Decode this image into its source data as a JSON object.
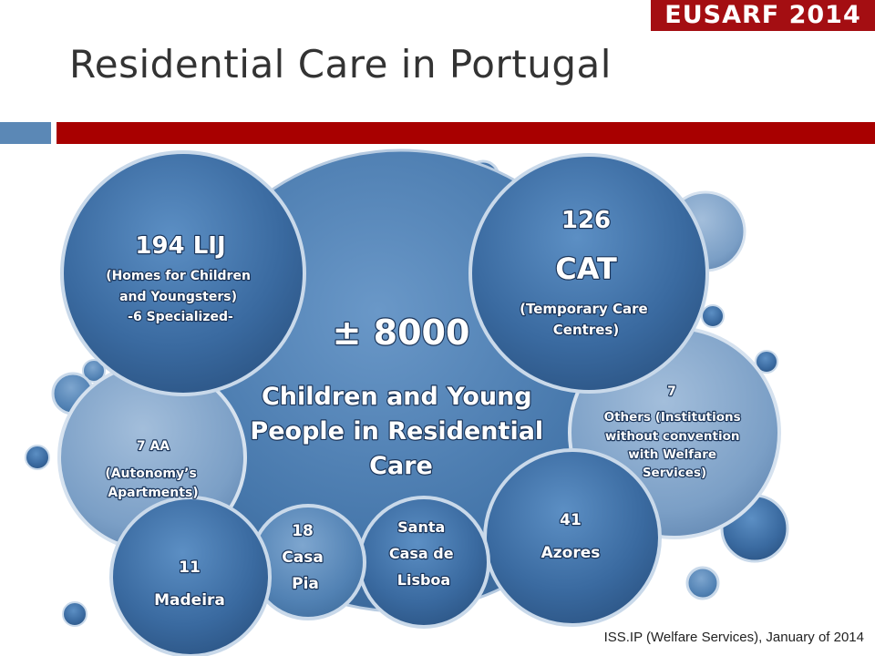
{
  "header": {
    "logo_text": "EUSARF 2014",
    "title": "Residential Care in Portugal",
    "accent_colors": {
      "blue": "#5b88b6",
      "red": "#a80000"
    }
  },
  "diagram": {
    "center": {
      "value": "±  8000",
      "description": [
        "Children and Young",
        "People in Residential",
        "Care"
      ]
    },
    "lij": {
      "count": "194 LIJ",
      "lines": [
        "(Homes for Children",
        "and Youngsters)",
        "-6 Specialized-"
      ]
    },
    "cat": {
      "count": "126",
      "code": "CAT",
      "lines": [
        "(Temporary Care",
        "Centres)"
      ]
    },
    "others": {
      "count": "7",
      "lines": [
        "Others (Institutions",
        "without convention",
        "with Welfare",
        "Services)"
      ]
    },
    "aa": {
      "count": "7 AA",
      "lines": [
        "(Autonomy’s",
        "Apartments)"
      ]
    },
    "madeira": {
      "count": "11",
      "name": "Madeira"
    },
    "casa_pia": {
      "lines": [
        "18",
        "Casa",
        "Pia"
      ]
    },
    "santa_casa": {
      "lines": [
        "Santa",
        "Casa de",
        "Lisboa"
      ]
    },
    "azores": {
      "count": "41",
      "name": "Azores"
    }
  },
  "source": "ISS.IP (Welfare Services), January of 2014"
}
